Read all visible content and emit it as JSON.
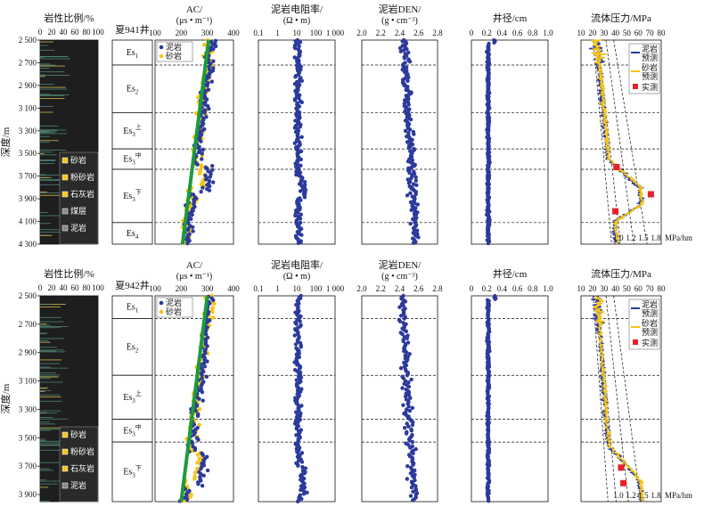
{
  "chart_data": [
    {
      "type": "composite well log",
      "well": "夏941井",
      "depth_ticks": [
        "2 500",
        "2 700",
        "2 900",
        "3 100",
        "3 300",
        "3 500",
        "3 700",
        "3 900",
        "4 100",
        "4 300"
      ],
      "depth_range": [
        2500,
        4300
      ],
      "y_axis_label": "深度/m",
      "lithology_panel": {
        "title": "岩性比例/%",
        "ticks": [
          "0",
          "20",
          "40",
          "60",
          "80",
          "100"
        ],
        "legend": [
          "砂岩",
          "粉砂岩",
          "石灰岩",
          "煤层",
          "泥岩"
        ]
      },
      "formations": [
        {
          "label": "Es1",
          "top": 2500,
          "bottom": 2720
        },
        {
          "label": "Es2",
          "top": 2720,
          "bottom": 3140
        },
        {
          "label": "Es3上",
          "top": 3140,
          "bottom": 3460
        },
        {
          "label": "Es3中",
          "top": 3460,
          "bottom": 3640
        },
        {
          "label": "Es3下",
          "top": 3640,
          "bottom": 4110
        },
        {
          "label": "Es4",
          "top": 4110,
          "bottom": 4300
        }
      ],
      "ac": {
        "title": "AC/",
        "unit": "(μs • m⁻¹)",
        "ticks": [
          "100",
          "200",
          "300",
          "400"
        ],
        "range": [
          100,
          400
        ],
        "legend": [
          "泥岩",
          "砂岩"
        ],
        "trend": {
          "depth": [
            2500,
            4300
          ],
          "value": [
            305,
            205
          ]
        }
      },
      "resistivity": {
        "title": "泥岩电阻率/",
        "unit": "(Ω • m)",
        "ticks": [
          "0.1",
          "1",
          "10",
          "100",
          "1 000"
        ],
        "log_range": [
          0.1,
          1000
        ],
        "typical": 12
      },
      "density": {
        "title": "泥岩DEN/",
        "unit": "(g • cm⁻³)",
        "ticks": [
          "2.0",
          "2.2",
          "2.4",
          "2.6",
          "2.8"
        ],
        "range": [
          2.0,
          2.8
        ],
        "typical_top": 2.45,
        "typical_bottom": 2.57
      },
      "caliper": {
        "title": "井径/cm",
        "ticks": [
          "0",
          "0.2",
          "0.4",
          "0.6",
          "0.8",
          "1.0"
        ],
        "range": [
          0,
          1.0
        ],
        "typical": 0.22
      },
      "pressure": {
        "title": "流体压力/MPa",
        "ticks": [
          "10",
          "20",
          "30",
          "40",
          "50",
          "60",
          "70",
          "80"
        ],
        "range": [
          10,
          80
        ],
        "legend": [
          "泥岩预测",
          "砂岩预测",
          "实测"
        ],
        "gradient_labels": [
          "1.0",
          "1.2",
          "1.5",
          "1.8"
        ],
        "gradient_unit": "MPa/hm",
        "measured": [
          {
            "depth": 3620,
            "value": 41
          },
          {
            "depth": 3860,
            "value": 71
          },
          {
            "depth": 4010,
            "value": 40
          }
        ]
      }
    },
    {
      "type": "composite well log",
      "well": "夏942井",
      "depth_ticks": [
        "2 500",
        "2 700",
        "2 900",
        "3 100",
        "3 300",
        "3 500",
        "3 700",
        "3 900"
      ],
      "depth_range": [
        2500,
        3950
      ],
      "y_axis_label": "深度/m",
      "lithology_panel": {
        "title": "岩性比例/%",
        "ticks": [
          "0",
          "20",
          "40",
          "60",
          "80",
          "100"
        ],
        "legend": [
          "砂岩",
          "粉砂岩",
          "石灰岩",
          "泥岩"
        ]
      },
      "formations": [
        {
          "label": "Es1",
          "top": 2500,
          "bottom": 2660
        },
        {
          "label": "Es2",
          "top": 2660,
          "bottom": 3060
        },
        {
          "label": "Es3上",
          "top": 3060,
          "bottom": 3370
        },
        {
          "label": "Es3中",
          "top": 3370,
          "bottom": 3530
        },
        {
          "label": "Es3下",
          "top": 3530,
          "bottom": 3950
        }
      ],
      "ac": {
        "title": "AC/",
        "unit": "(μs • m⁻¹)",
        "ticks": [
          "100",
          "200",
          "300",
          "400"
        ],
        "range": [
          100,
          400
        ],
        "legend": [
          "泥岩",
          "砂岩"
        ],
        "trend": {
          "depth": [
            2500,
            3950
          ],
          "value": [
            300,
            200
          ]
        }
      },
      "resistivity": {
        "title": "泥岩电阻率/",
        "unit": "(Ω • m)",
        "ticks": [
          "0.1",
          "1",
          "10",
          "100",
          "1 000"
        ],
        "log_range": [
          0.1,
          1000
        ],
        "typical": 12
      },
      "density": {
        "title": "泥岩DEN/",
        "unit": "(g • cm⁻³)",
        "ticks": [
          "2.0",
          "2.2",
          "2.4",
          "2.6",
          "2.8"
        ],
        "range": [
          2.0,
          2.8
        ],
        "typical_top": 2.42,
        "typical_bottom": 2.55
      },
      "caliper": {
        "title": "井径/cm",
        "ticks": [
          "0",
          "0.2",
          "0.4",
          "0.6",
          "0.8",
          "1.0"
        ],
        "range": [
          0,
          1.0
        ],
        "typical": 0.22
      },
      "pressure": {
        "title": "流体压力/MPa",
        "ticks": [
          "10",
          "20",
          "30",
          "40",
          "50",
          "60",
          "70",
          "80"
        ],
        "range": [
          10,
          80
        ],
        "legend": [
          "泥岩预测",
          "砂岩预测",
          "实测"
        ],
        "gradient_labels": [
          "1.0",
          "1.2",
          "1.5",
          "1.8"
        ],
        "gradient_unit": "MPa/hm",
        "measured": [
          {
            "depth": 3710,
            "value": 45
          },
          {
            "depth": 3820,
            "value": 47
          }
        ]
      }
    }
  ],
  "colors": {
    "mudstone": "#2b3a9c",
    "sandstone": "#f5c518",
    "trend": "#1a9b3c",
    "measured": "#e8202a",
    "lith_bg": "#1e1e1e",
    "lith_hi": "#4e8a7a"
  }
}
